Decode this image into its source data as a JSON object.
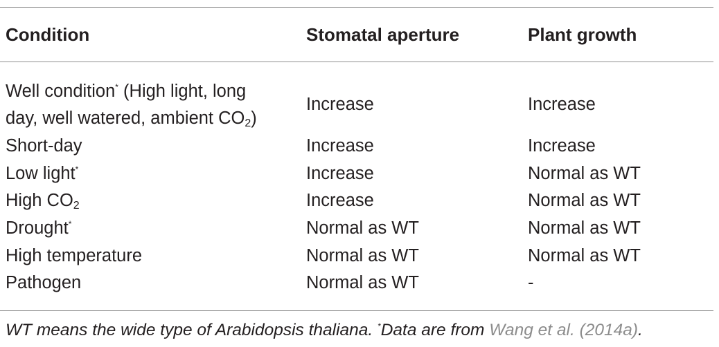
{
  "table": {
    "headers": [
      "Condition",
      "Stomatal aperture",
      "Plant growth"
    ],
    "rows": [
      {
        "condition_line1": "Well condition",
        "condition_marker": "*",
        "condition_line1_rest": " (High light, long",
        "condition_line2": "day, well watered, ambient CO",
        "condition_sub": "2",
        "condition_close": ")",
        "stomatal_aperture": "Increase",
        "plant_growth": "Increase"
      },
      {
        "condition": "Short-day",
        "stomatal_aperture": "Increase",
        "plant_growth": "Increase"
      },
      {
        "condition": "Low light",
        "condition_marker": "*",
        "stomatal_aperture": "Increase",
        "plant_growth": "Normal as WT"
      },
      {
        "condition": "High CO",
        "condition_sub": "2",
        "stomatal_aperture": "Increase",
        "plant_growth": "Normal as WT"
      },
      {
        "condition": "Drought",
        "condition_marker": "*",
        "stomatal_aperture": "Normal as WT",
        "plant_growth": "Normal as WT"
      },
      {
        "condition": "High temperature",
        "stomatal_aperture": "Normal as WT",
        "plant_growth": "Normal as WT"
      },
      {
        "condition": "Pathogen",
        "stomatal_aperture": "Normal as WT",
        "plant_growth": "-"
      }
    ]
  },
  "footnote": {
    "text": "WT means the wide type of Arabidopsis thaliana. ",
    "marker": "*",
    "text2": "Data are from ",
    "citation": "Wang et al. (2014a)",
    "end": "."
  },
  "colors": {
    "text": "#231f20",
    "rule": "#8c8c8c",
    "citation_link": "#8c8c8c"
  }
}
